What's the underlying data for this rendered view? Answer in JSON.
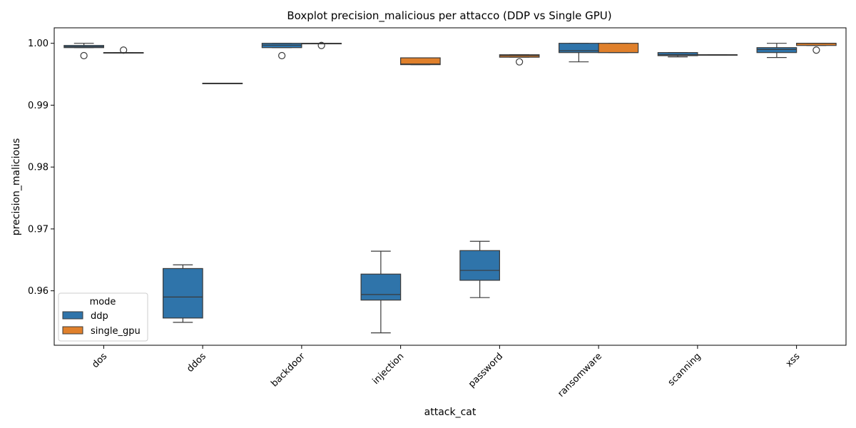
{
  "chart_data": {
    "type": "boxplot",
    "title": "Boxplot precision_malicious per attacco (DDP vs Single GPU)",
    "xlabel": "attack_cat",
    "ylabel": "precision_malicious",
    "categories": [
      "dos",
      "ddos",
      "backdoor",
      "injection",
      "password",
      "ransomware",
      "scanning",
      "xss"
    ],
    "ylim": [
      0.9512,
      1.0025
    ],
    "yticks": [
      0.96,
      0.97,
      0.98,
      0.99,
      1.0
    ],
    "ytick_labels": [
      "0.96",
      "0.97",
      "0.98",
      "0.99",
      "1.00"
    ],
    "legend": {
      "title": "mode",
      "position": "lower-left",
      "entries": [
        "ddp",
        "single_gpu"
      ]
    },
    "series": [
      {
        "name": "ddp",
        "color": "#2f74aa",
        "boxes": [
          {
            "category": "dos",
            "whislo": 0.9993,
            "q1": 0.9993,
            "med": 0.99945,
            "q3": 0.99965,
            "whishi": 1.0,
            "fliers": [
              0.998
            ]
          },
          {
            "category": "ddos",
            "whislo": 0.9549,
            "q1": 0.9556,
            "med": 0.959,
            "q3": 0.9636,
            "whishi": 0.9642,
            "fliers": []
          },
          {
            "category": "backdoor",
            "whislo": 0.9993,
            "q1": 0.9993,
            "med": 0.9997,
            "q3": 1.0,
            "whishi": 1.0,
            "fliers": [
              0.998
            ]
          },
          {
            "category": "injection",
            "whislo": 0.9532,
            "q1": 0.9585,
            "med": 0.9594,
            "q3": 0.9627,
            "whishi": 0.9664,
            "fliers": []
          },
          {
            "category": "password",
            "whislo": 0.9589,
            "q1": 0.9617,
            "med": 0.9633,
            "q3": 0.9665,
            "whishi": 0.968,
            "fliers": []
          },
          {
            "category": "ransomware",
            "whislo": 0.997,
            "q1": 0.9985,
            "med": 0.9988,
            "q3": 1.0,
            "whishi": 1.0,
            "fliers": []
          },
          {
            "category": "scanning",
            "whislo": 0.9978,
            "q1": 0.998,
            "med": 0.99815,
            "q3": 0.9985,
            "whishi": 0.9985,
            "fliers": []
          },
          {
            "category": "xss",
            "whislo": 0.9977,
            "q1": 0.9985,
            "med": 0.999,
            "q3": 0.9993,
            "whishi": 1.0,
            "fliers": []
          }
        ]
      },
      {
        "name": "single_gpu",
        "color": "#e0802b",
        "boxes": [
          {
            "category": "dos",
            "whislo": 0.9985,
            "q1": 0.9985,
            "med": 0.9985,
            "q3": 0.9985,
            "whishi": 0.9985,
            "fliers": [
              0.9989
            ]
          },
          {
            "category": "ddos",
            "whislo": 0.99355,
            "q1": 0.99355,
            "med": 0.99355,
            "q3": 0.99355,
            "whishi": 0.99355,
            "fliers": []
          },
          {
            "category": "backdoor",
            "whislo": 1.0,
            "q1": 1.0,
            "med": 1.0,
            "q3": 1.0,
            "whishi": 1.0,
            "fliers": [
              0.99965
            ]
          },
          {
            "category": "injection",
            "whislo": 0.99655,
            "q1": 0.99655,
            "med": 0.99665,
            "q3": 0.99765,
            "whishi": 0.99765,
            "fliers": []
          },
          {
            "category": "password",
            "whislo": 0.99775,
            "q1": 0.99775,
            "med": 0.998,
            "q3": 0.99815,
            "whishi": 0.99815,
            "fliers": [
              0.997
            ]
          },
          {
            "category": "ransomware",
            "whislo": 0.9985,
            "q1": 0.9985,
            "med": 0.9985,
            "q3": 1.0,
            "whishi": 1.0,
            "fliers": []
          },
          {
            "category": "scanning",
            "whislo": 0.99815,
            "q1": 0.99815,
            "med": 0.99815,
            "q3": 0.99815,
            "whishi": 0.99815,
            "fliers": []
          },
          {
            "category": "xss",
            "whislo": 0.99965,
            "q1": 0.99965,
            "med": 1.0,
            "q3": 1.0,
            "whishi": 1.0,
            "fliers": [
              0.9989
            ]
          }
        ]
      }
    ]
  }
}
